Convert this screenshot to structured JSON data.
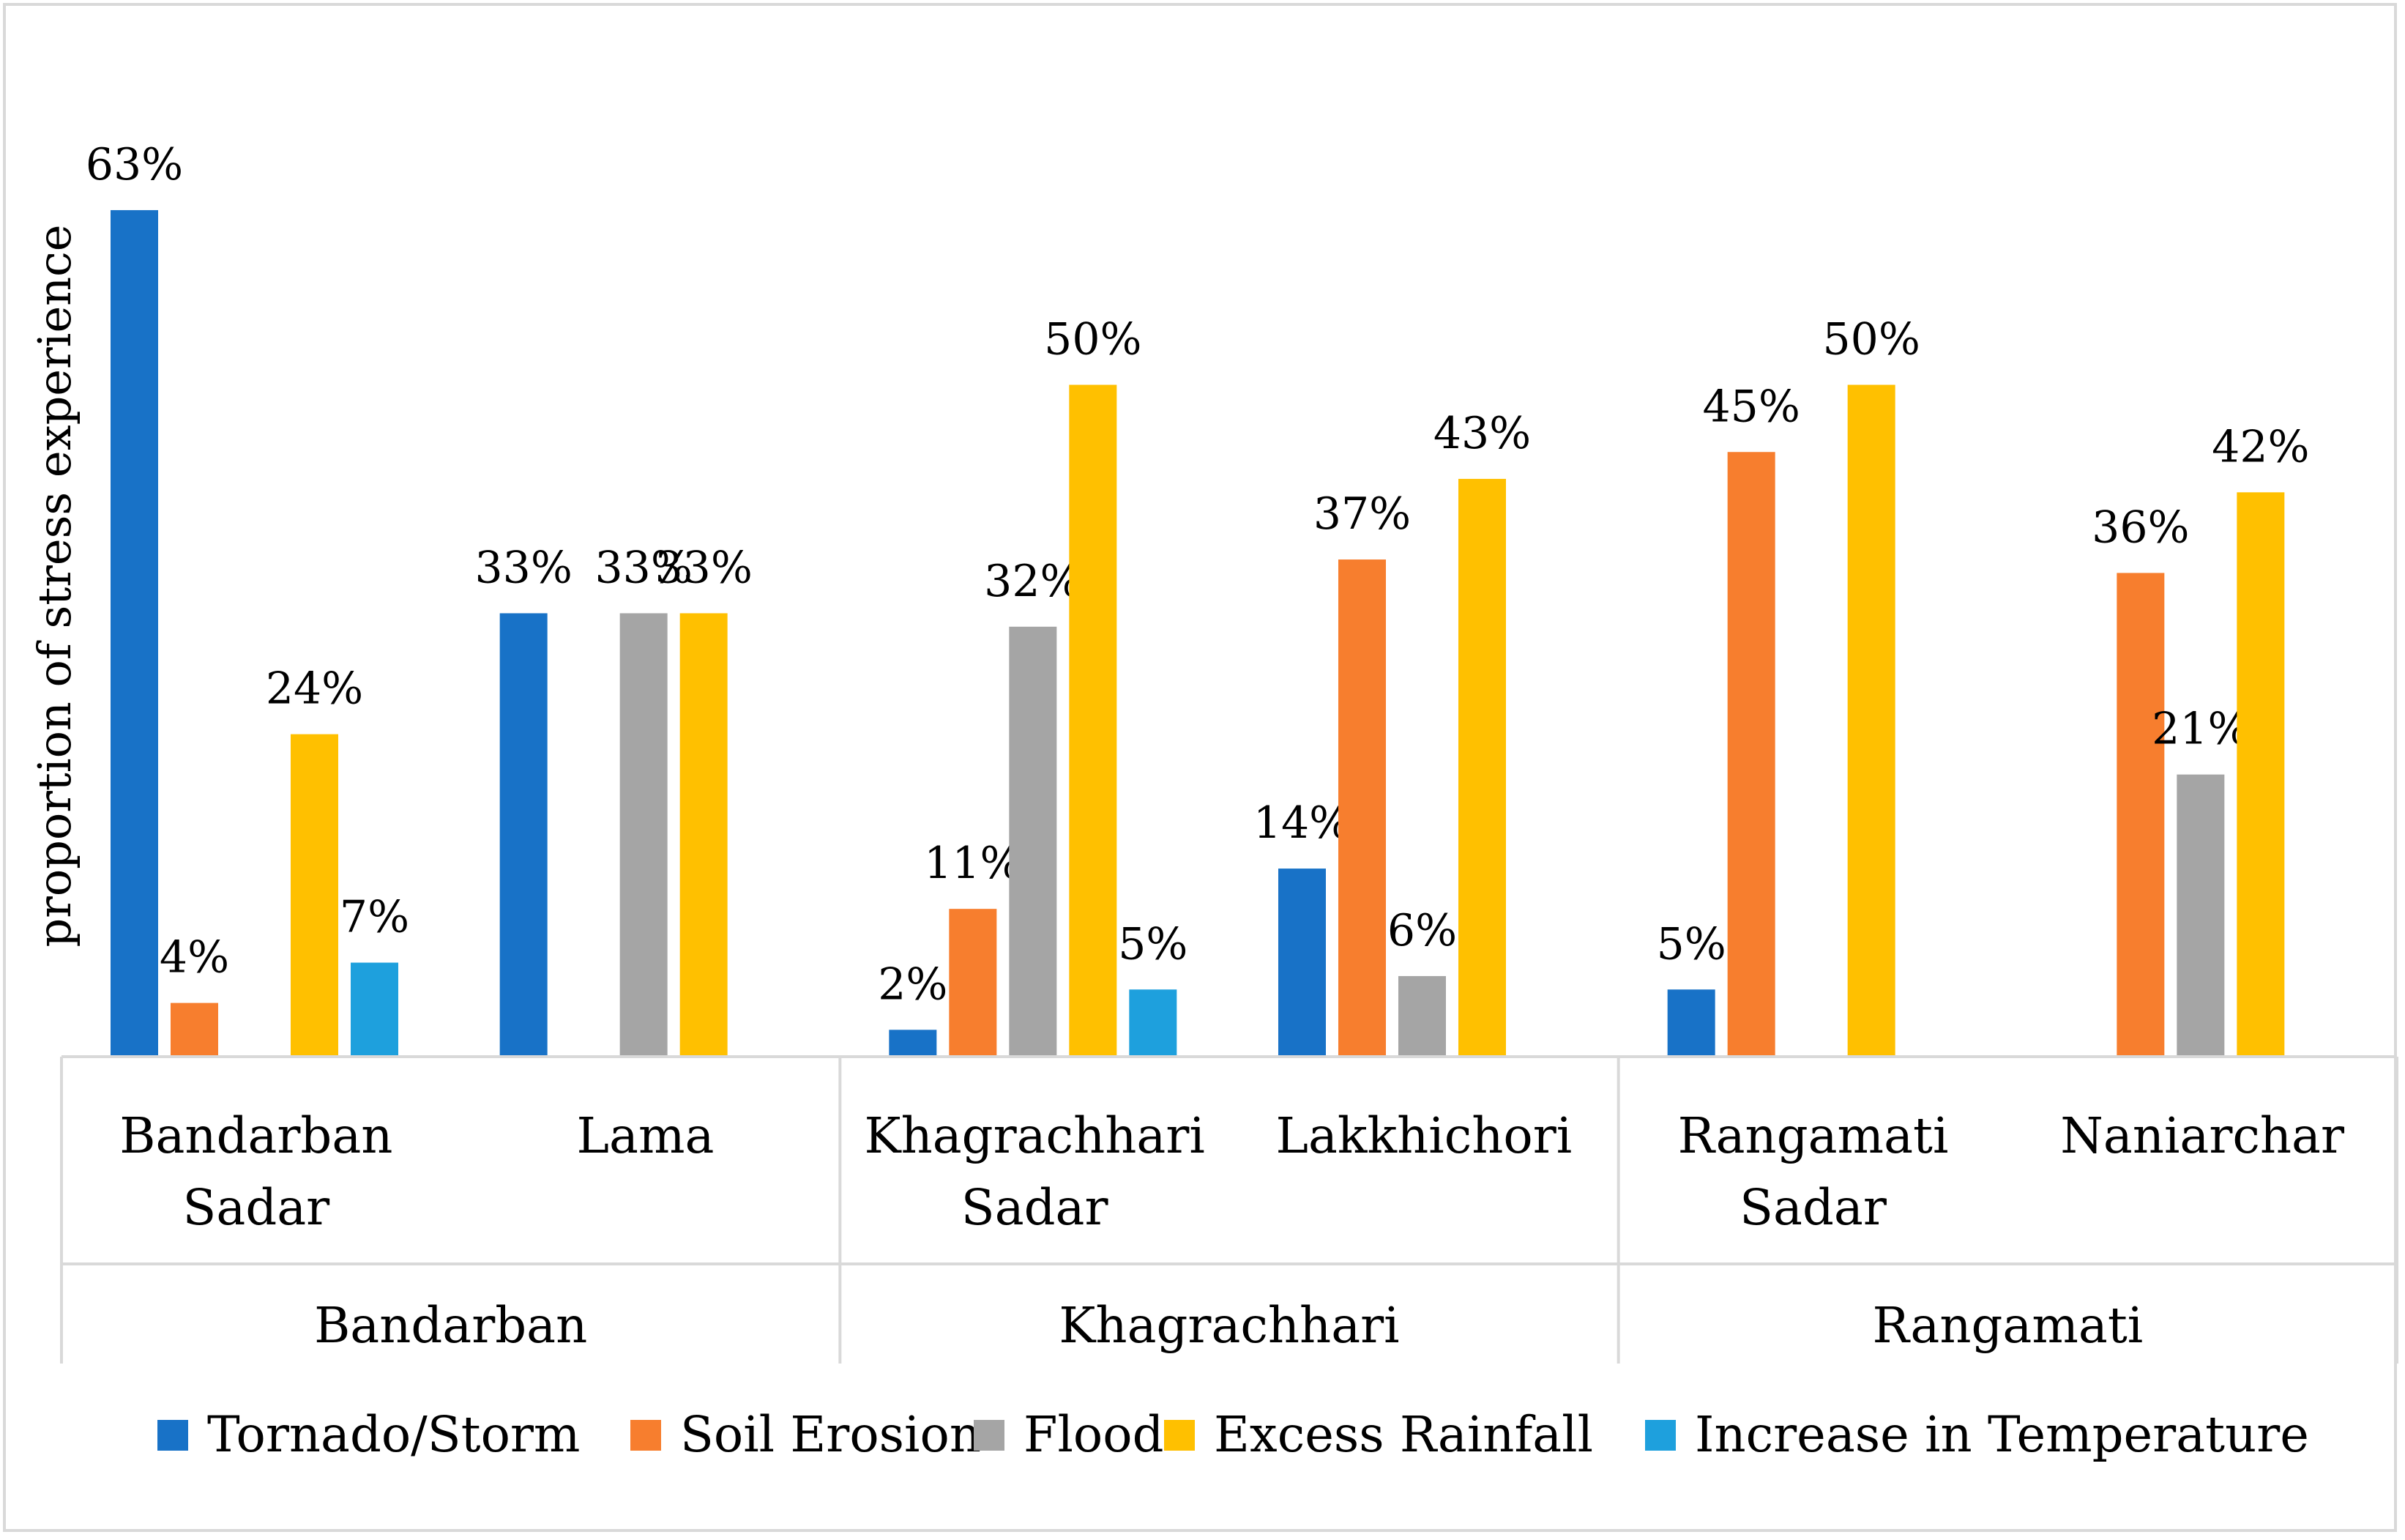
{
  "chart_data": {
    "type": "bar",
    "title": "",
    "ylabel": "proportion of stress experience",
    "xlabel": "",
    "ylim": [
      0,
      63
    ],
    "grid": false,
    "legend_position": "bottom",
    "groups": [
      {
        "name": "Bandarban",
        "categories": [
          [
            "Bandarban",
            "Sadar"
          ],
          [
            "Lama"
          ]
        ]
      },
      {
        "name": "Khagrachhari",
        "categories": [
          [
            "Khagrachhari",
            "Sadar"
          ],
          [
            "Lakkhichori"
          ]
        ]
      },
      {
        "name": "Rangamati",
        "categories": [
          [
            "Rangamati",
            "Sadar"
          ],
          [
            "Naniarchar"
          ]
        ]
      }
    ],
    "categories": [
      "Bandarban Sadar",
      "Lama",
      "Khagrachhari Sadar",
      "Lakkhichori",
      "Rangamati Sadar",
      "Naniarchar"
    ],
    "series": [
      {
        "name": "Tornado/Storm",
        "color": "#1872c7",
        "values": [
          63,
          33,
          2,
          14,
          5,
          null
        ]
      },
      {
        "name": "Soil Erosion",
        "color": "#f77e2e",
        "values": [
          4,
          null,
          11,
          37,
          45,
          36
        ]
      },
      {
        "name": "Flood",
        "color": "#a5a5a5",
        "values": [
          null,
          33,
          32,
          6,
          null,
          21
        ]
      },
      {
        "name": "Excess Rainfall",
        "color": "#ffc000",
        "values": [
          24,
          33,
          50,
          43,
          50,
          42
        ]
      },
      {
        "name": "Increase in Temperature",
        "color": "#1ea0dd",
        "values": [
          7,
          null,
          5,
          null,
          null,
          null
        ]
      }
    ],
    "value_format": "percent"
  }
}
